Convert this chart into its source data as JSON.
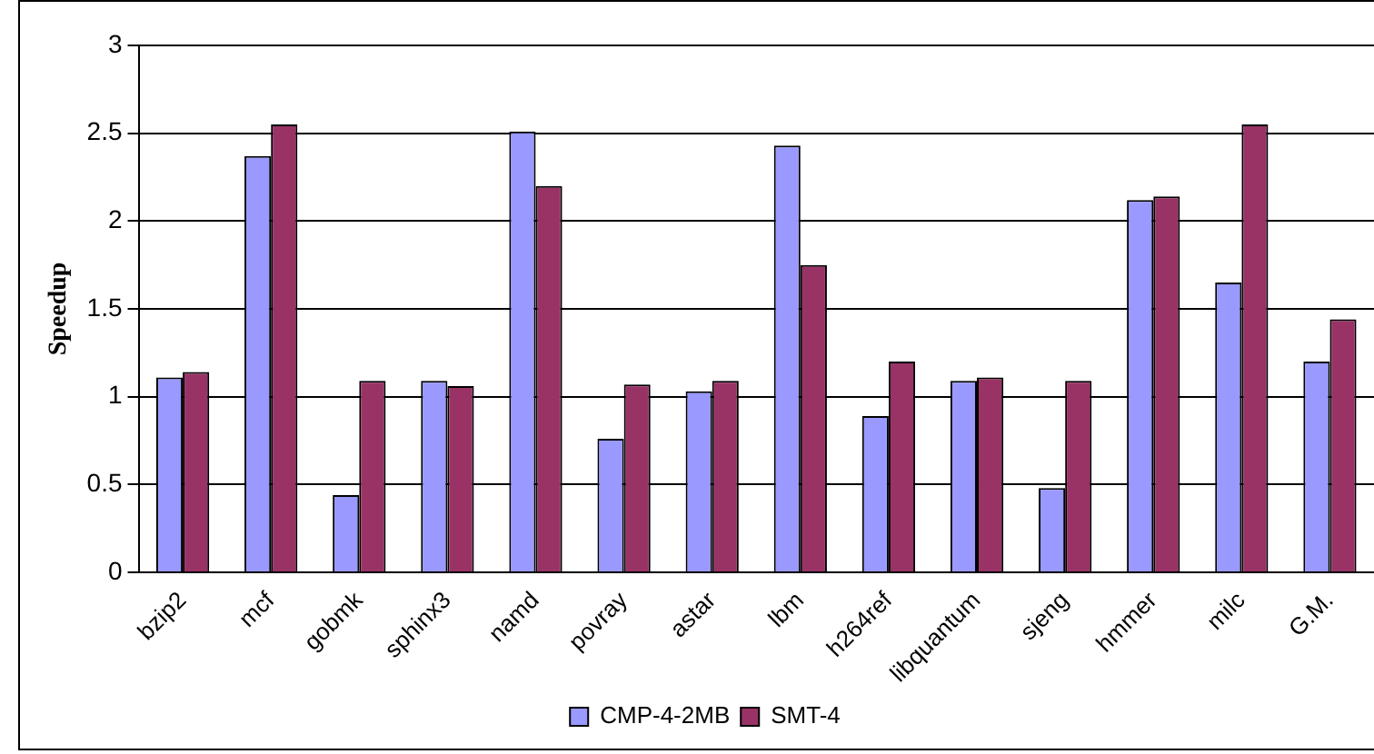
{
  "chart_data": {
    "type": "bar",
    "ylabel": "Speedup",
    "categories": [
      "bzip2",
      "mcf",
      "gobmk",
      "sphinx3",
      "namd",
      "povray",
      "astar",
      "lbm",
      "h264ref",
      "libquantum",
      "sjeng",
      "hmmer",
      "milc",
      "G.M."
    ],
    "series": [
      {
        "name": "CMP-4-2MB",
        "color": "#9999ff",
        "values": [
          1.11,
          2.37,
          0.44,
          1.09,
          2.51,
          0.76,
          1.03,
          2.43,
          0.89,
          1.09,
          0.48,
          2.12,
          1.65,
          1.2
        ]
      },
      {
        "name": "SMT-4",
        "color": "#993366",
        "values": [
          1.14,
          2.55,
          1.09,
          1.06,
          2.2,
          1.07,
          1.09,
          1.75,
          1.2,
          1.11,
          1.09,
          2.14,
          2.55,
          1.44
        ]
      }
    ],
    "ylim": [
      0,
      3
    ],
    "yticks": [
      0,
      0.5,
      1,
      1.5,
      2,
      2.5,
      3
    ],
    "grid": "y",
    "legend": "bottom"
  }
}
